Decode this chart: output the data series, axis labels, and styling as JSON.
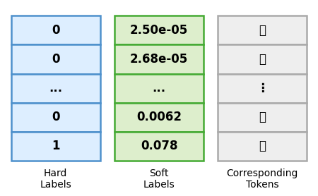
{
  "hard_labels": [
    "0",
    "0",
    "...",
    "0",
    "1"
  ],
  "soft_labels": [
    "2.50e-05",
    "2.68e-05",
    "...",
    "0.0062",
    "0.078"
  ],
  "tokens": [
    "璐",
    "樾",
    "⋮",
    "的",
    "们"
  ],
  "hard_bg": "#ddeeff",
  "hard_border": "#4d90cc",
  "soft_bg": "#ddeecc",
  "soft_border": "#44aa33",
  "token_bg": "#eeeeee",
  "token_border": "#aaaaaa",
  "hard_label_text": "Hard\nLabels",
  "soft_label_text": "Soft\nLabels",
  "token_label_text": "Corresponding\nTokens",
  "text_color": "#000000",
  "font_size_cell": 12,
  "font_size_label": 10,
  "fig_width": 4.5,
  "fig_height": 2.78
}
